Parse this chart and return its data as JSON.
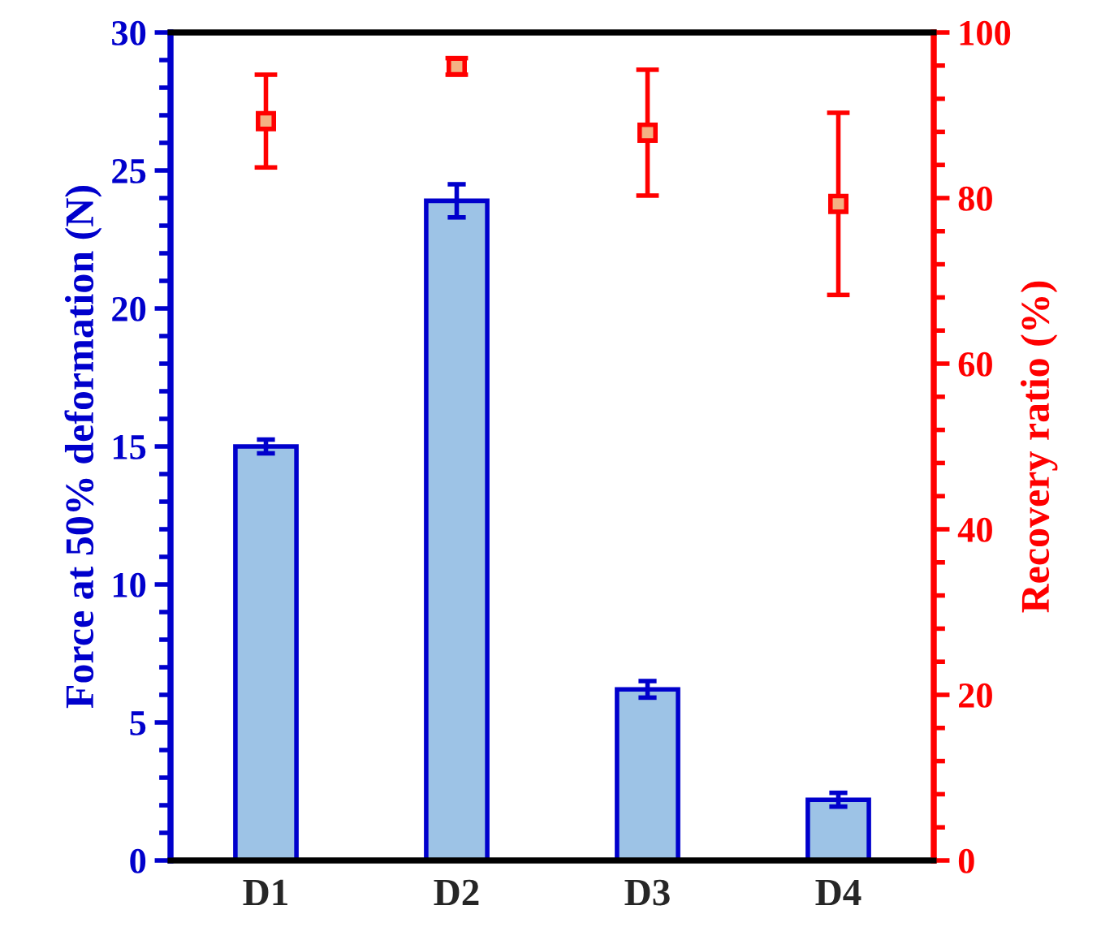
{
  "chart_data": {
    "type": "bar",
    "categories": [
      "D1",
      "D2",
      "D3",
      "D4"
    ],
    "ylabel": "Force at 50% deformation (N)",
    "y2label": "Recovery ratio (%)",
    "ylim": [
      0,
      30
    ],
    "yticks": [
      0,
      5,
      10,
      15,
      20,
      25,
      30
    ],
    "y2lim": [
      0,
      100
    ],
    "y2ticks": [
      0,
      20,
      40,
      60,
      80,
      100
    ],
    "grid": false,
    "legend": false,
    "series": [
      {
        "color": "#9dc3e6",
        "values": [
          15.0,
          23.9,
          6.2,
          2.2
        ],
        "errors": [
          0.25,
          0.6,
          0.3,
          0.25
        ]
      },
      {
        "type": "scatter",
        "axis": "y2",
        "color": "#ff0000",
        "marker": "square",
        "values": [
          89.3,
          95.9,
          87.9,
          79.3
        ],
        "errors": [
          5.6,
          1.0,
          7.6,
          11.0
        ]
      }
    ]
  }
}
